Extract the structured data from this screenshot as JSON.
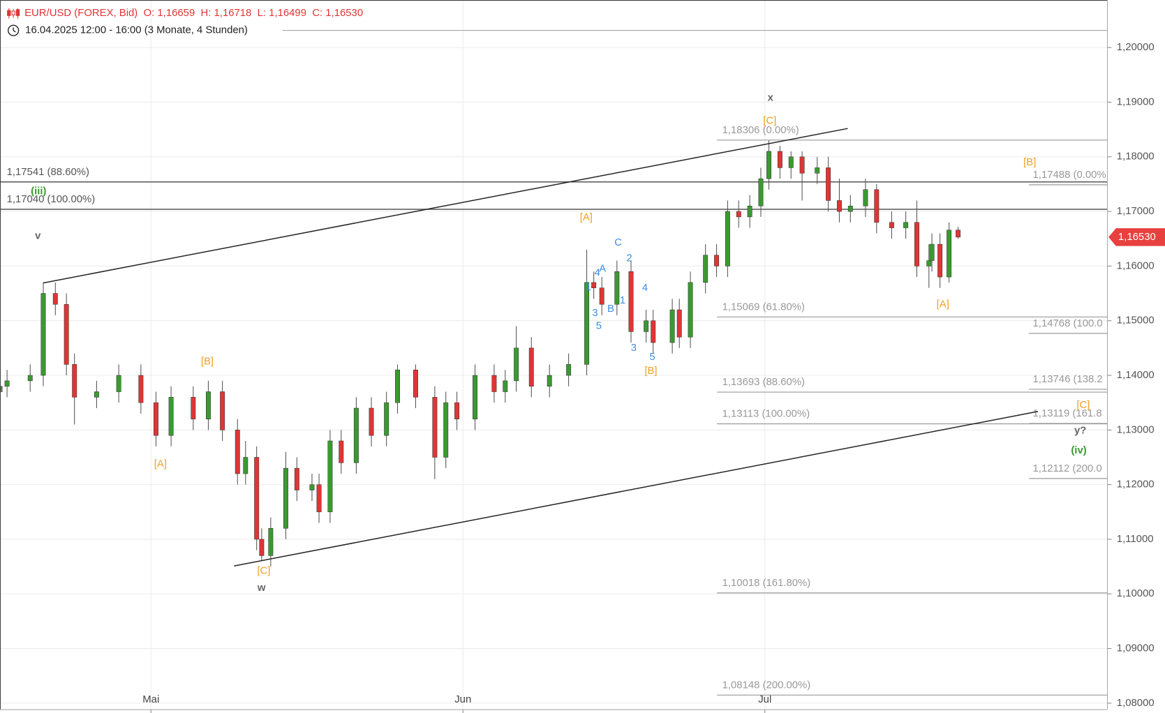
{
  "chart_data": {
    "type": "candlestick",
    "title": "EUR/USD (FOREX, Bid)  O: 1,16659  H: 1,16718  L: 1,16499  C: 1,16530",
    "subtitle": "16.04.2025 12:00 - 16:00 (3 Monate, 4 Stunden)",
    "up_color": "#3a9a30",
    "down_color": "#e03535",
    "grid": true,
    "xlim": [
      0,
      110
    ],
    "xticks": [
      {
        "value": 15,
        "label": "Mai"
      },
      {
        "value": 46,
        "label": "Jun"
      },
      {
        "value": 76,
        "label": "Jul"
      }
    ],
    "ylim": [
      1.0782,
      1.2087
    ],
    "yticks": [
      {
        "value": 1.08,
        "label": "1,08000"
      },
      {
        "value": 1.09,
        "label": "1,09000"
      },
      {
        "value": 1.1,
        "label": "1,10000"
      },
      {
        "value": 1.11,
        "label": "1,11000"
      },
      {
        "value": 1.12,
        "label": "1,12000"
      },
      {
        "value": 1.13,
        "label": "1,13000"
      },
      {
        "value": 1.14,
        "label": "1,14000"
      },
      {
        "value": 1.15,
        "label": "1,15000"
      },
      {
        "value": 1.16,
        "label": "1,16000"
      },
      {
        "value": 1.17,
        "label": "1,17000"
      },
      {
        "value": 1.18,
        "label": "1,18000"
      },
      {
        "value": 1.19,
        "label": "1,19000"
      },
      {
        "value": 1.2,
        "label": "1,20000"
      }
    ],
    "x": [
      0,
      0.7,
      3.0,
      4.3,
      5.5,
      6.6,
      7.4,
      9.6,
      11.8,
      14.0,
      15.5,
      17.0,
      19.2,
      20.7,
      22.1,
      23.6,
      24.4,
      25.5,
      26.0,
      26.9,
      28.4,
      29.5,
      31.0,
      31.7,
      32.8,
      33.9,
      35.4,
      36.9,
      38.4,
      39.5,
      41.3,
      43.2,
      44.3,
      45.4,
      47.2,
      49.1,
      50.2,
      51.3,
      52.8,
      54.6,
      56.5,
      58.3,
      59.0,
      59.8,
      61.3,
      62.7,
      64.2,
      64.9,
      66.8,
      67.5,
      68.6,
      70.1,
      71.2,
      72.3,
      73.4,
      74.5,
      75.6,
      76.4,
      77.5,
      78.6,
      79.7,
      81.2,
      82.3,
      83.4,
      84.5,
      86.0,
      87.1,
      88.6,
      90.0,
      91.1,
      92.3,
      92.6,
      93.4,
      94.3,
      95.2
    ],
    "open": [
      1.137,
      1.138,
      1.139,
      1.14,
      1.155,
      1.153,
      1.142,
      1.136,
      1.137,
      1.14,
      1.135,
      1.129,
      1.136,
      1.132,
      1.137,
      1.13,
      1.122,
      1.125,
      1.11,
      1.107,
      1.112,
      1.123,
      1.119,
      1.12,
      1.115,
      1.128,
      1.124,
      1.134,
      1.129,
      1.135,
      1.141,
      1.136,
      1.125,
      1.135,
      1.132,
      1.14,
      1.137,
      1.139,
      1.145,
      1.138,
      1.14,
      1.142,
      1.157,
      1.156,
      1.153,
      1.159,
      1.148,
      1.15,
      1.146,
      1.152,
      1.147,
      1.157,
      1.162,
      1.16,
      1.17,
      1.169,
      1.171,
      1.176,
      1.181,
      1.178,
      1.18,
      1.177,
      1.178,
      1.172,
      1.17,
      1.171,
      1.174,
      1.168,
      1.167,
      1.168,
      1.16,
      1.161,
      1.164,
      1.158,
      1.16659
    ],
    "high": [
      1.14,
      1.141,
      1.142,
      1.157,
      1.157,
      1.155,
      1.144,
      1.139,
      1.142,
      1.142,
      1.137,
      1.138,
      1.138,
      1.139,
      1.139,
      1.132,
      1.128,
      1.127,
      1.112,
      1.114,
      1.126,
      1.125,
      1.122,
      1.122,
      1.13,
      1.13,
      1.136,
      1.136,
      1.137,
      1.142,
      1.142,
      1.138,
      1.137,
      1.137,
      1.142,
      1.142,
      1.141,
      1.149,
      1.147,
      1.142,
      1.144,
      1.163,
      1.159,
      1.158,
      1.161,
      1.161,
      1.152,
      1.152,
      1.154,
      1.154,
      1.159,
      1.164,
      1.164,
      1.172,
      1.172,
      1.173,
      1.178,
      1.183,
      1.182,
      1.181,
      1.181,
      1.18,
      1.18,
      1.176,
      1.173,
      1.176,
      1.175,
      1.17,
      1.17,
      1.172,
      1.164,
      1.166,
      1.166,
      1.168,
      1.16718
    ],
    "low": [
      1.135,
      1.136,
      1.137,
      1.138,
      1.151,
      1.14,
      1.131,
      1.134,
      1.135,
      1.133,
      1.127,
      1.127,
      1.13,
      1.13,
      1.128,
      1.12,
      1.12,
      1.108,
      1.106,
      1.105,
      1.11,
      1.117,
      1.117,
      1.113,
      1.113,
      1.122,
      1.122,
      1.127,
      1.127,
      1.133,
      1.134,
      1.121,
      1.123,
      1.13,
      1.13,
      1.135,
      1.135,
      1.137,
      1.136,
      1.136,
      1.138,
      1.14,
      1.154,
      1.151,
      1.151,
      1.146,
      1.146,
      1.144,
      1.144,
      1.145,
      1.145,
      1.155,
      1.158,
      1.158,
      1.167,
      1.167,
      1.169,
      1.174,
      1.176,
      1.176,
      1.172,
      1.175,
      1.17,
      1.168,
      1.168,
      1.169,
      1.166,
      1.165,
      1.165,
      1.158,
      1.156,
      1.159,
      1.156,
      1.157,
      1.16499
    ],
    "close": [
      1.138,
      1.139,
      1.14,
      1.155,
      1.153,
      1.142,
      1.136,
      1.137,
      1.14,
      1.135,
      1.129,
      1.136,
      1.132,
      1.137,
      1.13,
      1.122,
      1.125,
      1.11,
      1.107,
      1.112,
      1.123,
      1.119,
      1.12,
      1.115,
      1.128,
      1.124,
      1.134,
      1.129,
      1.135,
      1.141,
      1.136,
      1.125,
      1.135,
      1.132,
      1.14,
      1.137,
      1.139,
      1.145,
      1.138,
      1.14,
      1.142,
      1.157,
      1.156,
      1.153,
      1.159,
      1.148,
      1.15,
      1.146,
      1.152,
      1.147,
      1.157,
      1.162,
      1.16,
      1.17,
      1.169,
      1.171,
      1.176,
      1.181,
      1.178,
      1.18,
      1.177,
      1.178,
      1.172,
      1.17,
      1.171,
      1.174,
      1.168,
      1.167,
      1.168,
      1.16,
      1.161,
      1.164,
      1.158,
      1.16659,
      1.1653
    ],
    "last_price": {
      "value": 1.1653,
      "label": "1,16530"
    },
    "levels": [
      {
        "value": 1.17541,
        "label": "1,17541 (88.60%)"
      },
      {
        "value": 1.1704,
        "label": "1,17040 (100.00%)"
      },
      {
        "value": 1.18306,
        "label": "1,18306 (0.00%)"
      },
      {
        "value": 1.15069,
        "label": "1,15069 (61.80%)"
      },
      {
        "value": 1.13693,
        "label": "1,13693 (88.60%)"
      },
      {
        "value": 1.13113,
        "label": "1,13113 (100.00%)"
      },
      {
        "value": 1.10018,
        "label": "1,10018 (161.80%)"
      },
      {
        "value": 1.08148,
        "label": "1,08148 (200.00%)"
      },
      {
        "value": 1.17488,
        "label": "1,17488 (0.00%"
      },
      {
        "value": 1.14768,
        "label": "1,14768 (100.0"
      },
      {
        "value": 1.13746,
        "label": "1,13746 (138.2"
      },
      {
        "value": 1.13119,
        "label": "1,13119 (161.8"
      },
      {
        "value": 1.12112,
        "label": "1,12112 (200.0"
      }
    ],
    "annotations": [
      {
        "text": "[C]",
        "color": "#f0a020"
      },
      {
        "text": "[B]",
        "color": "#f0a020"
      },
      {
        "text": "[A]",
        "color": "#f0a020"
      },
      {
        "text": "[B]",
        "color": "#f0a020"
      },
      {
        "text": "[A]",
        "color": "#f0a020"
      },
      {
        "text": "[C]",
        "color": "#f0a020"
      },
      {
        "text": "[B]",
        "color": "#f0a020"
      },
      {
        "text": "[A]",
        "color": "#f0a020"
      },
      {
        "text": "[C]",
        "color": "#f0a020"
      },
      {
        "text": "x",
        "color": "#666666"
      },
      {
        "text": "v",
        "color": "#666666"
      },
      {
        "text": "w",
        "color": "#666666"
      },
      {
        "text": "y?",
        "color": "#666666"
      },
      {
        "text": "(iii)",
        "color": "#3a9a30"
      },
      {
        "text": "(iv)",
        "color": "#3a9a30"
      },
      {
        "text": "C",
        "color": "#3d8fe0"
      },
      {
        "text": "2",
        "color": "#3d8fe0"
      },
      {
        "text": "A",
        "color": "#3d8fe0"
      },
      {
        "text": "4",
        "color": "#3d8fe0"
      },
      {
        "text": "1",
        "color": "#3d8fe0"
      },
      {
        "text": "4",
        "color": "#3d8fe0"
      },
      {
        "text": "1",
        "color": "#3d8fe0"
      },
      {
        "text": "B",
        "color": "#3d8fe0"
      },
      {
        "text": "3",
        "color": "#3d8fe0"
      },
      {
        "text": "5",
        "color": "#3d8fe0"
      },
      {
        "text": "3",
        "color": "#3d8fe0"
      },
      {
        "text": "5",
        "color": "#3d8fe0"
      }
    ]
  }
}
